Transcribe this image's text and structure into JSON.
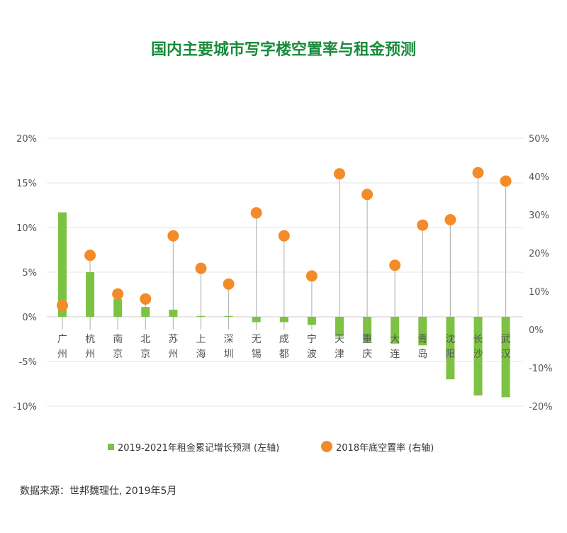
{
  "chart_data": {
    "type": "bar",
    "title": "国内主要城市写字楼空置率与租金预测",
    "categories": [
      "广州",
      "杭州",
      "南京",
      "北京",
      "苏州",
      "上海",
      "深圳",
      "无锡",
      "成都",
      "宁波",
      "天津",
      "重庆",
      "大连",
      "青岛",
      "沈阳",
      "长沙",
      "武汉"
    ],
    "left_axis": {
      "ylim": [
        -10,
        20
      ],
      "ticks": [
        "20%",
        "15%",
        "10%",
        "5%",
        "0%",
        "-5%",
        "-10%"
      ],
      "tick_values": [
        20,
        15,
        10,
        5,
        0,
        -5,
        -10
      ]
    },
    "right_axis": {
      "ylim": [
        -20,
        50
      ],
      "ticks": [
        "50%",
        "40%",
        "30%",
        "20%",
        "10%",
        "0%",
        "-10%",
        "-20%"
      ],
      "tick_values": [
        50,
        40,
        30,
        20,
        10,
        0,
        -10,
        -20
      ]
    },
    "series": [
      {
        "name": "2019-2021年租金累记增长预测 (左轴)",
        "axis": "left",
        "kind": "bar",
        "values": [
          11.7,
          5.0,
          2.0,
          1.1,
          0.8,
          0.1,
          0.1,
          -0.6,
          -0.6,
          -0.9,
          -2.2,
          -2.8,
          -3.0,
          -3.2,
          -7.0,
          -8.8,
          -9.0
        ]
      },
      {
        "name": "2018年底空置率 (右轴)",
        "axis": "right",
        "kind": "lollipop",
        "values": [
          6.3,
          19.4,
          9.3,
          8.0,
          24.5,
          16.0,
          11.9,
          30.5,
          24.5,
          14.0,
          40.7,
          35.3,
          16.8,
          27.3,
          28.7,
          41.0,
          38.8
        ]
      }
    ],
    "legend_position": "bottom",
    "colors": {
      "bar": "#7dc243",
      "dot": "#f38b28",
      "stem": "#b8b8b8",
      "grid": "#e6e6e6",
      "axis_text": "#555555"
    }
  },
  "source": "数据来源：世邦魏理仕, 2019年5月"
}
